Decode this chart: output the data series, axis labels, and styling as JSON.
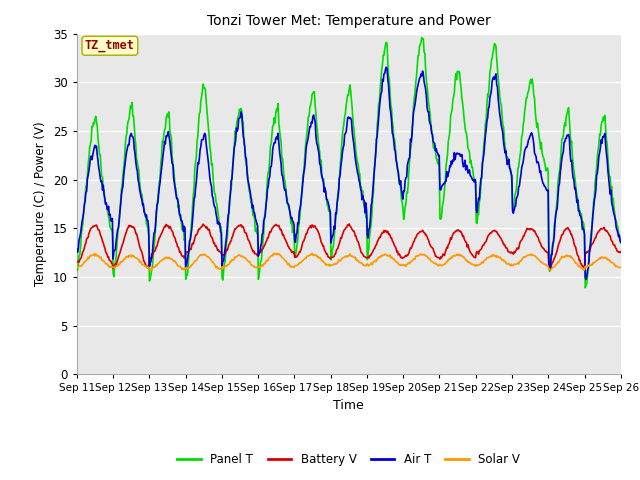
{
  "title": "Tonzi Tower Met: Temperature and Power",
  "xlabel": "Time",
  "ylabel": "Temperature (C) / Power (V)",
  "annotation": "TZ_tmet",
  "xlim_days": [
    11,
    26
  ],
  "ylim": [
    0,
    35
  ],
  "yticks": [
    0,
    5,
    10,
    15,
    20,
    25,
    30,
    35
  ],
  "fig_bg_color": "#ffffff",
  "plot_bg_color": "#e8e8e8",
  "grid_color": "#ffffff",
  "colors": {
    "panel_t": "#00dd00",
    "battery_v": "#dd0000",
    "air_t": "#0000dd",
    "solar_v": "#ff9900"
  },
  "legend_labels": [
    "Panel T",
    "Battery V",
    "Air T",
    "Solar V"
  ],
  "n_days": 15,
  "panel_t_daily_peaks": [
    26.5,
    27.5,
    26.7,
    29.7,
    27.4,
    27.5,
    28.8,
    29.3,
    34.0,
    34.8,
    31.3,
    33.8,
    30.2,
    27.0,
    26.5
  ],
  "panel_t_daily_mins": [
    10.5,
    10.3,
    9.5,
    9.7,
    9.8,
    10.0,
    12.0,
    12.0,
    12.0,
    16.0,
    16.0,
    15.5,
    17.0,
    10.5,
    9.0
  ],
  "air_t_daily_peaks": [
    23.5,
    24.8,
    24.8,
    24.5,
    26.8,
    24.5,
    26.5,
    26.5,
    31.5,
    31.2,
    22.7,
    30.7,
    24.7,
    24.8,
    24.5
  ],
  "air_t_daily_mins": [
    12.8,
    12.0,
    11.0,
    11.0,
    11.0,
    12.0,
    13.5,
    13.5,
    14.0,
    19.0,
    19.0,
    16.8,
    16.5,
    11.0,
    9.5
  ],
  "battery_v_daily_peaks": [
    15.3,
    15.3,
    15.3,
    15.3,
    15.3,
    15.3,
    15.3,
    15.3,
    14.7,
    14.7,
    14.8,
    14.7,
    15.0,
    15.0,
    15.0
  ],
  "battery_v_daily_mins": [
    11.5,
    11.0,
    12.0,
    12.5,
    12.2,
    12.5,
    12.0,
    12.0,
    12.0,
    12.0,
    12.0,
    12.5,
    12.5,
    11.0,
    12.5
  ],
  "solar_v_daily_peaks": [
    12.3,
    12.2,
    12.0,
    12.3,
    12.2,
    12.4,
    12.3,
    12.2,
    12.3,
    12.3,
    12.3,
    12.2,
    12.3,
    12.2,
    12.0
  ],
  "solar_v_daily_mins": [
    11.0,
    11.0,
    10.8,
    10.8,
    11.0,
    11.0,
    11.2,
    11.2,
    11.2,
    11.2,
    11.2,
    11.2,
    11.2,
    10.8,
    11.0
  ]
}
